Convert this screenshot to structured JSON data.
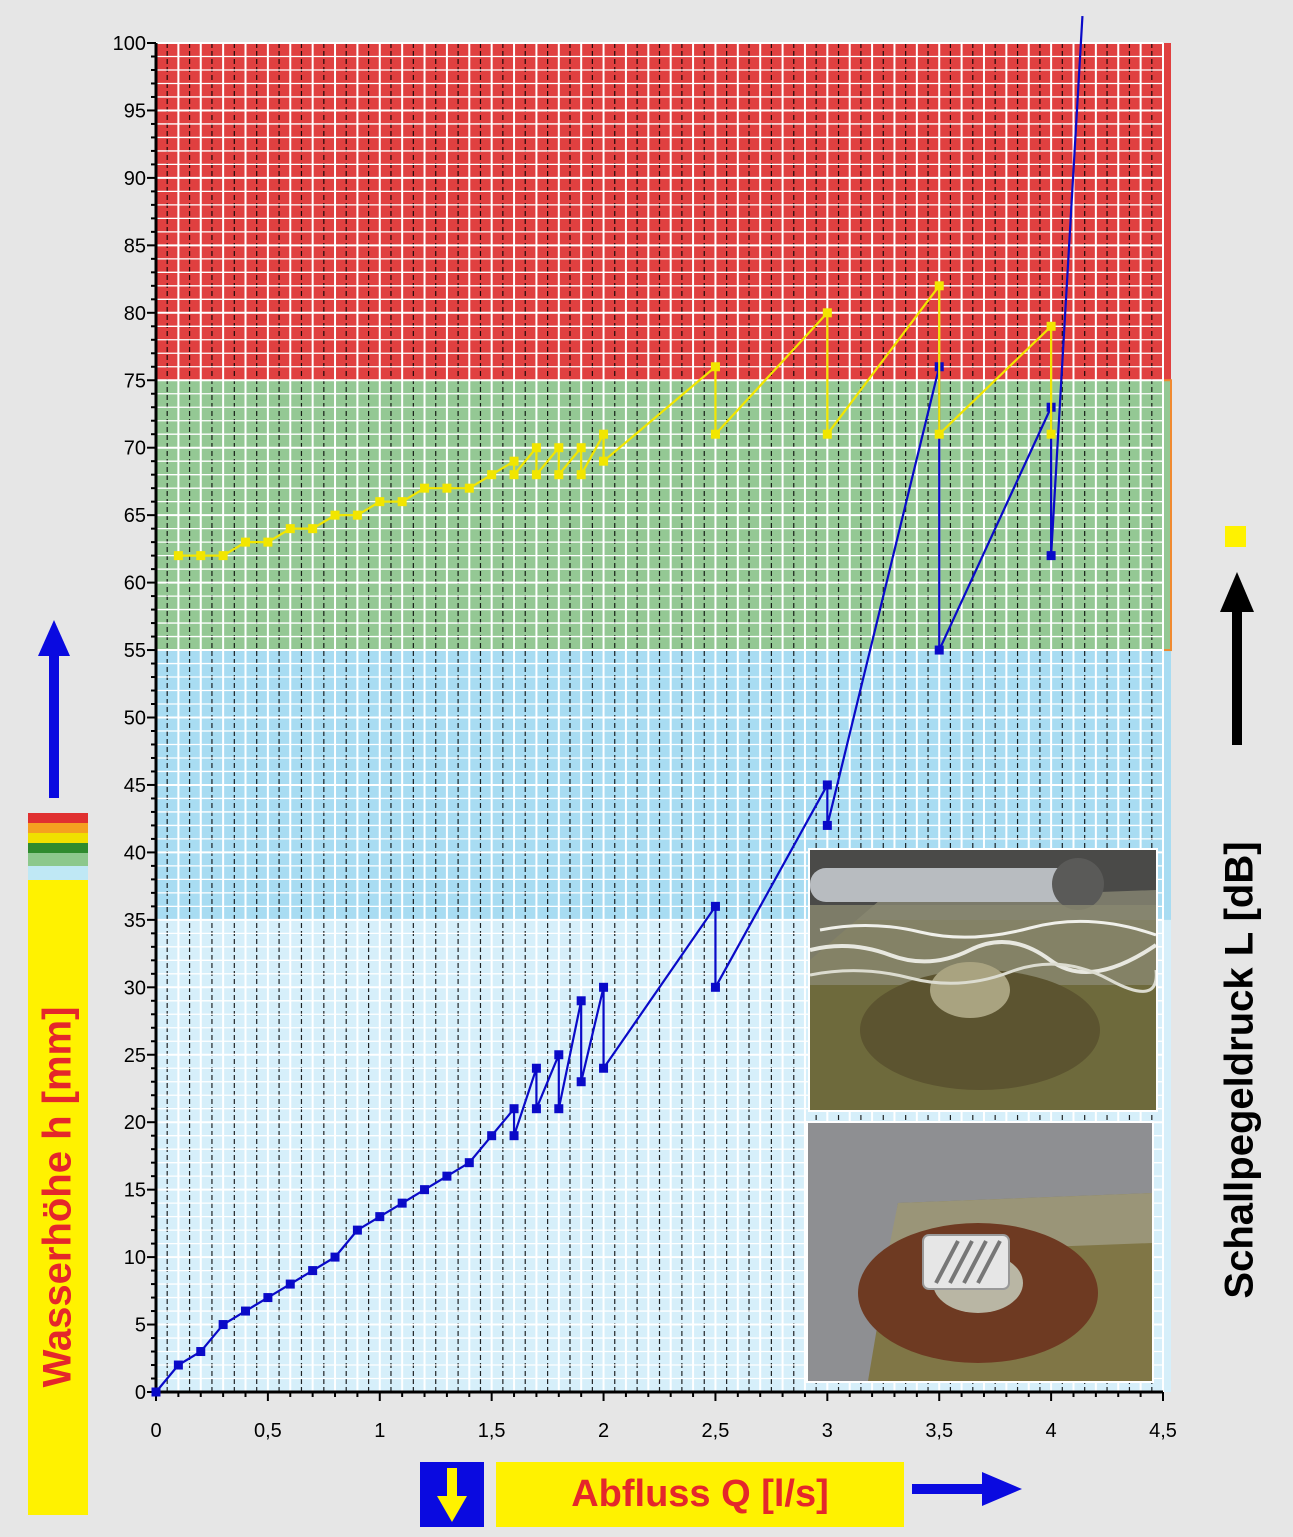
{
  "chart_data": {
    "type": "line",
    "xlabel": "Abfluss Q [l/s]",
    "ylabel": "Wasserhöhe h [mm]",
    "y2label": "Schallpegeldruck L [dB]",
    "xlim": [
      0,
      4.5
    ],
    "ylim": [
      0,
      100
    ],
    "x_ticks": [
      0,
      0.5,
      1,
      1.5,
      2,
      2.5,
      3,
      3.5,
      4,
      4.5
    ],
    "x_tick_labels": [
      "0",
      "0,5",
      "1",
      "1,5",
      "2",
      "2,5",
      "3",
      "3,5",
      "4",
      "4,5"
    ],
    "y_ticks": [
      0,
      5,
      10,
      15,
      20,
      25,
      30,
      35,
      40,
      45,
      50,
      55,
      60,
      65,
      70,
      75,
      80,
      85,
      90,
      95,
      100
    ],
    "grid": true,
    "background_bands": [
      {
        "from": 0,
        "to": 35,
        "color": "#d6effa"
      },
      {
        "from": 35,
        "to": 55,
        "color": "#a8dcf2"
      },
      {
        "from": 55,
        "to": 75,
        "color": "#94c894"
      },
      {
        "from": 75,
        "to": 100,
        "color": "#e04040"
      }
    ],
    "series": [
      {
        "color": "#0a0ac8",
        "x": [
          0,
          0.1,
          0.2,
          0.3,
          0.4,
          0.5,
          0.6,
          0.7,
          0.8,
          0.9,
          1.0,
          1.1,
          1.2,
          1.3,
          1.4,
          1.5,
          1.6,
          1.6,
          1.7,
          1.7,
          1.8,
          1.8,
          1.9,
          1.9,
          2.0,
          2.0,
          2.5,
          2.5,
          3.0,
          3.0,
          3.5,
          3.5,
          4.0,
          4.0,
          4.14
        ],
        "y": [
          0,
          2,
          3,
          5,
          6,
          7,
          8,
          9,
          10,
          12,
          13,
          14,
          15,
          16,
          17,
          19,
          21,
          19,
          24,
          21,
          25,
          21,
          29,
          23,
          30,
          24,
          36,
          30,
          45,
          42,
          76,
          55,
          73,
          62,
          102
        ]
      },
      {
        "color": "#f2e600",
        "x": [
          0.1,
          0.2,
          0.3,
          0.4,
          0.5,
          0.6,
          0.7,
          0.8,
          0.9,
          1.0,
          1.1,
          1.2,
          1.3,
          1.4,
          1.5,
          1.6,
          1.6,
          1.7,
          1.7,
          1.8,
          1.8,
          1.9,
          1.9,
          2.0,
          2.0,
          2.5,
          2.5,
          3.0,
          3.0,
          3.5,
          3.5,
          4.0,
          4.0
        ],
        "y": [
          62,
          62,
          62,
          63,
          63,
          64,
          64,
          65,
          65,
          66,
          66,
          67,
          67,
          67,
          68,
          69,
          68,
          70,
          68,
          70,
          68,
          70,
          68,
          71,
          69,
          76,
          71,
          80,
          71,
          82,
          71,
          79,
          71
        ]
      }
    ]
  },
  "colors": {
    "label_box": "#fff200",
    "label_text": "#e4272b",
    "arrow_blue": "#0a0ae0"
  },
  "photos": [
    {
      "name": "photo-flowing-water",
      "icon": "photo-drain-flow"
    },
    {
      "name": "photo-drain-grate",
      "icon": "photo-drain-grate"
    }
  ]
}
